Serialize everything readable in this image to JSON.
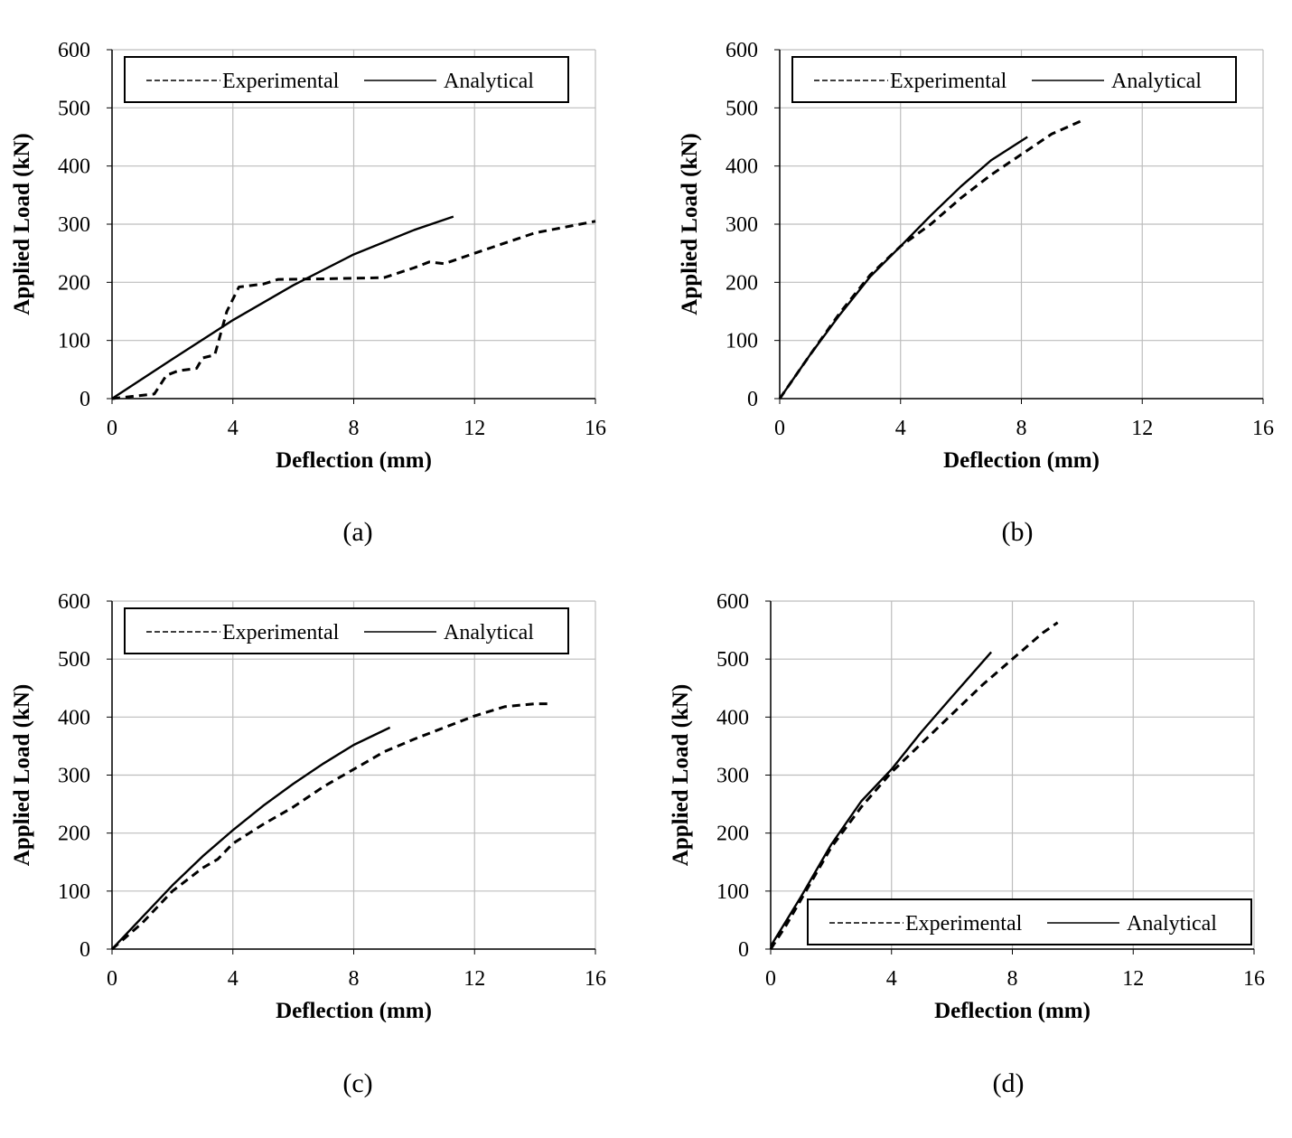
{
  "chart_data": [
    {
      "type": "line",
      "panel": "(a)",
      "xlabel": "Deflection (mm)",
      "ylabel": "Applied Load (kN)",
      "xlim": [
        0,
        16
      ],
      "ylim": [
        0,
        600
      ],
      "xticks": [
        "0",
        "4",
        "8",
        "12",
        "16"
      ],
      "yticks": [
        "0",
        "100",
        "200",
        "300",
        "400",
        "500",
        "600"
      ],
      "grid": true,
      "legend": "top",
      "series": [
        {
          "name": "Experimental",
          "style": "dashed",
          "x": [
            0,
            1.4,
            1.8,
            2.2,
            2.8,
            3.0,
            3.4,
            3.8,
            4.2,
            5,
            5.5,
            7,
            9,
            10,
            10.5,
            11,
            12,
            14,
            16
          ],
          "y": [
            0,
            8,
            40,
            48,
            52,
            70,
            75,
            150,
            192,
            197,
            205,
            206,
            208,
            225,
            235,
            232,
            250,
            285,
            305
          ]
        },
        {
          "name": "Analytical",
          "style": "solid",
          "x": [
            0,
            2,
            4,
            6,
            8,
            10,
            11.3
          ],
          "y": [
            0,
            68,
            135,
            195,
            248,
            290,
            313
          ]
        }
      ]
    },
    {
      "type": "line",
      "panel": "(b)",
      "xlabel": "Deflection (mm)",
      "ylabel": "Applied Load (kN)",
      "xlim": [
        0,
        16
      ],
      "ylim": [
        0,
        600
      ],
      "xticks": [
        "0",
        "4",
        "8",
        "12",
        "16"
      ],
      "yticks": [
        "0",
        "100",
        "200",
        "300",
        "400",
        "500",
        "600"
      ],
      "grid": true,
      "legend": "top",
      "series": [
        {
          "name": "Experimental",
          "style": "dashed",
          "x": [
            0,
            1,
            2,
            3,
            4,
            5,
            6,
            7,
            8,
            9,
            10,
            10.1
          ],
          "y": [
            0,
            75,
            148,
            213,
            262,
            300,
            345,
            385,
            420,
            455,
            478,
            475
          ]
        },
        {
          "name": "Analytical",
          "style": "solid",
          "x": [
            0,
            1,
            2,
            3,
            4,
            5,
            6,
            7,
            8.2
          ],
          "y": [
            0,
            75,
            145,
            210,
            262,
            315,
            365,
            410,
            450
          ]
        }
      ]
    },
    {
      "type": "line",
      "panel": "(c)",
      "xlabel": "Deflection (mm)",
      "ylabel": "Applied Load (kN)",
      "xlim": [
        0,
        16
      ],
      "ylim": [
        0,
        600
      ],
      "xticks": [
        "0",
        "4",
        "8",
        "12",
        "16"
      ],
      "yticks": [
        "0",
        "100",
        "200",
        "300",
        "400",
        "500",
        "600"
      ],
      "grid": true,
      "legend": "top",
      "series": [
        {
          "name": "Experimental",
          "style": "dashed",
          "x": [
            0,
            1,
            2,
            3,
            3.5,
            4,
            5,
            6,
            7,
            8,
            9,
            10,
            11,
            12,
            13,
            14,
            14.5
          ],
          "y": [
            0,
            45,
            100,
            140,
            155,
            182,
            215,
            245,
            280,
            310,
            340,
            362,
            382,
            402,
            418,
            423,
            423
          ]
        },
        {
          "name": "Analytical",
          "style": "solid",
          "x": [
            0,
            1,
            2,
            3,
            4,
            5,
            6,
            7,
            8,
            9.2
          ],
          "y": [
            0,
            55,
            110,
            160,
            205,
            247,
            285,
            320,
            352,
            382
          ]
        }
      ]
    },
    {
      "type": "line",
      "panel": "(d)",
      "xlabel": "Deflection (mm)",
      "ylabel": "Applied Load (kN)",
      "xlim": [
        0,
        16
      ],
      "ylim": [
        0,
        600
      ],
      "xticks": [
        "0",
        "4",
        "8",
        "12",
        "16"
      ],
      "yticks": [
        "0",
        "100",
        "200",
        "300",
        "400",
        "500",
        "600"
      ],
      "grid": true,
      "legend": "bottom-right",
      "series": [
        {
          "name": "Experimental",
          "style": "dashed",
          "x": [
            0,
            0.5,
            1,
            2,
            3,
            4,
            5,
            6,
            7,
            8,
            9,
            9.5
          ],
          "y": [
            0,
            40,
            85,
            175,
            245,
            305,
            355,
            405,
            455,
            500,
            545,
            563
          ]
        },
        {
          "name": "Analytical",
          "style": "solid",
          "x": [
            0,
            1,
            2,
            3,
            4,
            5,
            6,
            7.3
          ],
          "y": [
            5,
            90,
            180,
            255,
            310,
            375,
            435,
            512
          ]
        }
      ]
    }
  ]
}
